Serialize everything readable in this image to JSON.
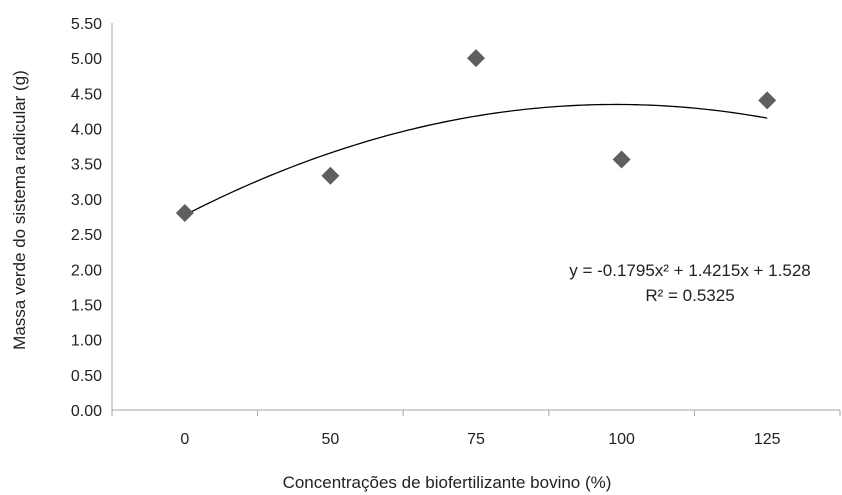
{
  "chart_data": {
    "type": "scatter",
    "xlabel": "Concentrações de biofertilizante bovino (%)",
    "ylabel": "Massa verde do sistema radicular (g)",
    "x_categories": [
      "0",
      "50",
      "75",
      "100",
      "125"
    ],
    "y_ticks": [
      "0.00",
      "0.50",
      "1.00",
      "1.50",
      "2.00",
      "2.50",
      "3.00",
      "3.50",
      "4.00",
      "4.50",
      "5.00",
      "5.50"
    ],
    "ylim": [
      0,
      5.5
    ],
    "grid": false,
    "marker": "diamond",
    "marker_color": "#5f5f5f",
    "points": [
      {
        "x": "0",
        "y": 2.8
      },
      {
        "x": "50",
        "y": 3.33
      },
      {
        "x": "75",
        "y": 5.0
      },
      {
        "x": "100",
        "y": 3.56
      },
      {
        "x": "125",
        "y": 4.4
      }
    ],
    "trendline": {
      "type": "polynomial",
      "coefficients": {
        "a": -0.1795,
        "b": 1.4215,
        "c": 1.528
      },
      "equation": "y = -0.1795x² + 1.4215x + 1.528",
      "r_squared": "R² = 0.5325"
    }
  }
}
